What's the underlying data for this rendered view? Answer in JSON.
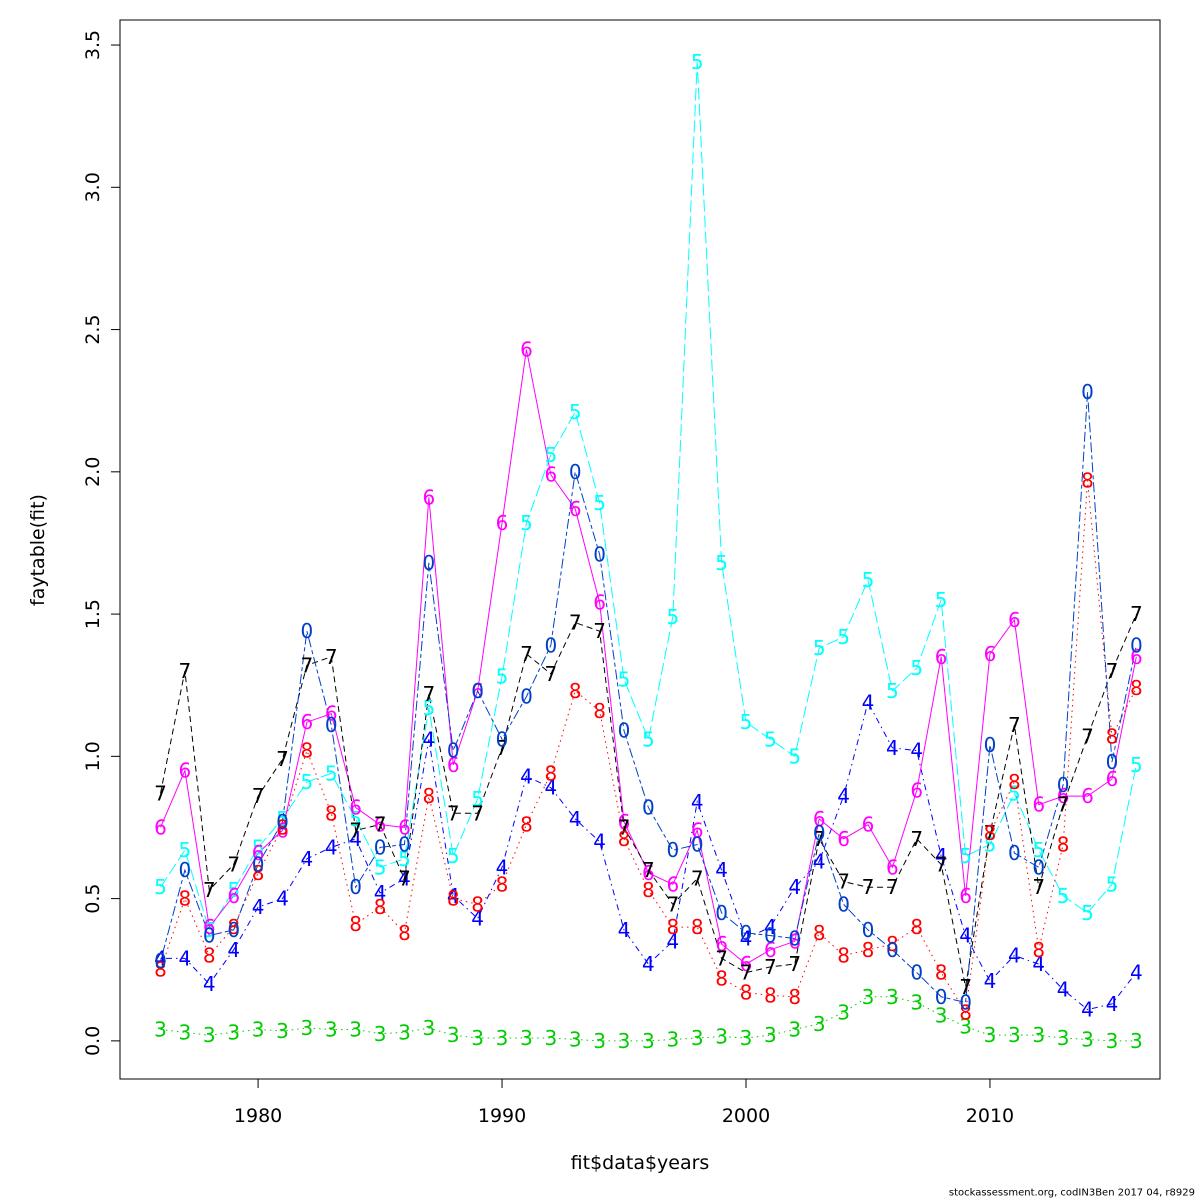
{
  "chart_data": {
    "type": "line",
    "xlabel": "fit$data$years",
    "ylabel": "faytable(fit)",
    "footer": "stockassessment.org, codIN3Ben 2017 04, r8929",
    "x": [
      1976,
      1977,
      1978,
      1979,
      1980,
      1981,
      1982,
      1983,
      1984,
      1985,
      1986,
      1987,
      1988,
      1989,
      1990,
      1991,
      1992,
      1993,
      1994,
      1995,
      1996,
      1997,
      1998,
      1999,
      2000,
      2001,
      2002,
      2003,
      2004,
      2005,
      2006,
      2007,
      2008,
      2009,
      2010,
      2011,
      2012,
      2013,
      2014,
      2015,
      2016
    ],
    "xlim": [
      1974.34,
      2016.97
    ],
    "xticks": [
      1980,
      1990,
      2000,
      2010
    ],
    "ylim": [
      -0.134,
      3.588
    ],
    "yticks": [
      {
        "value": 0,
        "label": "0.0"
      },
      0.5,
      {
        "value": 1,
        "label": "1.0"
      },
      1.5,
      {
        "value": 2,
        "label": "2.0"
      },
      2.5,
      {
        "value": 3,
        "label": "3.0"
      },
      3.5
    ],
    "series": [
      {
        "name": "3",
        "color": "#00cd00",
        "dash": "dotted",
        "values": [
          0.04,
          0.03,
          0.02,
          0.03,
          0.04,
          0.035,
          0.045,
          0.04,
          0.04,
          0.025,
          0.03,
          0.045,
          0.02,
          0.01,
          0.01,
          0.01,
          0.01,
          0.005,
          0,
          0,
          0,
          0.005,
          0.01,
          0.015,
          0.01,
          0.02,
          0.04,
          0.06,
          0.1,
          0.155,
          0.155,
          0.135,
          0.09,
          0.05,
          0.02,
          0.02,
          0.02,
          0.01,
          0.005,
          0,
          0
        ]
      },
      {
        "name": "4",
        "color": "#0000ff",
        "dash": "dotdash",
        "values": [
          0.29,
          0.29,
          0.2,
          0.32,
          0.47,
          0.5,
          0.64,
          0.68,
          0.71,
          0.52,
          0.57,
          1.06,
          0.51,
          0.43,
          0.61,
          0.93,
          0.89,
          0.78,
          0.7,
          0.39,
          0.27,
          0.35,
          0.84,
          0.6,
          0.36,
          0.4,
          0.54,
          0.63,
          0.86,
          1.19,
          1.03,
          1.02,
          0.65,
          0.37,
          0.21,
          0.3,
          0.27,
          0.18,
          0.11,
          0.13,
          0.24
        ]
      },
      {
        "name": "5",
        "color": "#00ffff",
        "dash": "longdash",
        "values": [
          0.54,
          0.67,
          0.39,
          0.53,
          0.68,
          0.78,
          0.91,
          0.94,
          0.78,
          0.61,
          0.64,
          1.17,
          0.65,
          0.85,
          1.28,
          1.82,
          2.06,
          2.21,
          1.89,
          1.27,
          1.06,
          1.49,
          3.44,
          1.68,
          1.12,
          1.06,
          1.0,
          1.38,
          1.42,
          1.62,
          1.23,
          1.31,
          1.55,
          0.65,
          0.69,
          0.87,
          0.67,
          0.51,
          0.45,
          0.55,
          0.97
        ]
      },
      {
        "name": "6",
        "color": "#ff00ff",
        "dash": "solid",
        "values": [
          0.75,
          0.95,
          0.4,
          0.51,
          0.66,
          0.74,
          1.12,
          1.15,
          0.82,
          0.76,
          0.75,
          1.91,
          0.97,
          1.23,
          1.82,
          2.43,
          1.99,
          1.87,
          1.54,
          0.77,
          0.59,
          0.55,
          0.74,
          0.34,
          0.27,
          0.32,
          0.35,
          0.78,
          0.71,
          0.76,
          0.61,
          0.88,
          1.35,
          0.51,
          1.36,
          1.48,
          0.83,
          0.86,
          0.86,
          0.92,
          1.35
        ]
      },
      {
        "name": "7",
        "color": "#000000",
        "dash": "dashed",
        "values": [
          0.87,
          1.3,
          0.53,
          0.62,
          0.86,
          0.99,
          1.32,
          1.35,
          0.74,
          0.76,
          0.57,
          1.22,
          0.8,
          0.8,
          1.03,
          1.36,
          1.29,
          1.47,
          1.44,
          0.75,
          0.6,
          0.48,
          0.57,
          0.29,
          0.24,
          0.26,
          0.27,
          0.71,
          0.56,
          0.54,
          0.54,
          0.71,
          0.62,
          0.19,
          0.73,
          1.11,
          0.54,
          0.83,
          1.07,
          1.3,
          1.5
        ]
      },
      {
        "name": "8",
        "color": "#ff0000",
        "dash": "dotted",
        "values": [
          0.25,
          0.5,
          0.3,
          0.4,
          0.59,
          0.75,
          1.02,
          0.8,
          0.41,
          0.47,
          0.38,
          0.86,
          0.5,
          0.48,
          0.55,
          0.76,
          0.94,
          1.23,
          1.16,
          0.71,
          0.53,
          0.4,
          0.4,
          0.22,
          0.17,
          0.16,
          0.155,
          0.38,
          0.3,
          0.32,
          0.34,
          0.4,
          0.24,
          0.1,
          0.73,
          0.91,
          0.32,
          0.69,
          1.97,
          1.07,
          1.24
        ]
      },
      {
        "name": "0",
        "color": "#0040c8",
        "dash": "twodash",
        "values": [
          0.28,
          0.6,
          0.37,
          0.39,
          0.62,
          0.77,
          1.44,
          1.11,
          0.54,
          0.68,
          0.69,
          1.68,
          1.02,
          1.23,
          1.06,
          1.21,
          1.39,
          2.0,
          1.71,
          1.09,
          0.82,
          0.67,
          0.69,
          0.45,
          0.38,
          0.37,
          0.36,
          0.73,
          0.48,
          0.39,
          0.32,
          0.24,
          0.155,
          0.135,
          1.04,
          0.66,
          0.61,
          0.9,
          2.28,
          0.98,
          1.39
        ]
      }
    ]
  }
}
